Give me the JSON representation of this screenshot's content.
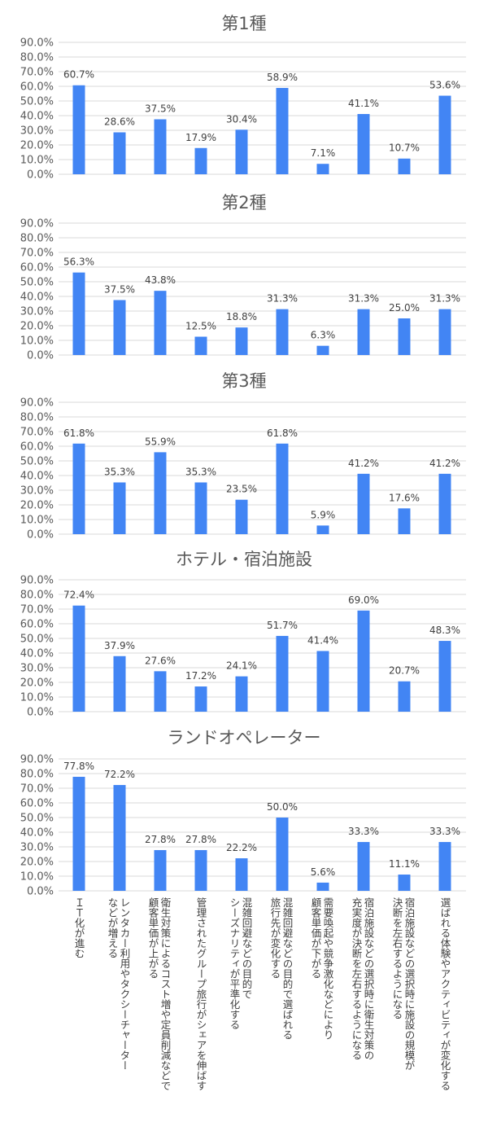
{
  "chart_data": [
    {
      "type": "bar",
      "title": "第1種",
      "ylim": [
        0,
        90
      ],
      "y_tick_labels": [
        "0.0%",
        "10.0%",
        "20.0%",
        "30.0%",
        "40.0%",
        "50.0%",
        "60.0%",
        "70.0%",
        "80.0%",
        "90.0%"
      ],
      "grid": true,
      "values": [
        60.7,
        28.6,
        37.5,
        17.9,
        30.4,
        58.9,
        7.1,
        41.1,
        10.7,
        53.6
      ],
      "data_labels": [
        "60.7%",
        "28.6%",
        "37.5%",
        "17.9%",
        "30.4%",
        "58.9%",
        "7.1%",
        "41.1%",
        "10.7%",
        "53.6%"
      ],
      "color": "#4285f4"
    },
    {
      "type": "bar",
      "title": "第2種",
      "ylim": [
        0,
        90
      ],
      "y_tick_labels": [
        "0.0%",
        "10.0%",
        "20.0%",
        "30.0%",
        "40.0%",
        "50.0%",
        "60.0%",
        "70.0%",
        "80.0%",
        "90.0%"
      ],
      "grid": true,
      "values": [
        56.3,
        37.5,
        43.8,
        12.5,
        18.8,
        31.3,
        6.3,
        31.3,
        25.0,
        31.3
      ],
      "data_labels": [
        "56.3%",
        "37.5%",
        "43.8%",
        "12.5%",
        "18.8%",
        "31.3%",
        "6.3%",
        "31.3%",
        "25.0%",
        "31.3%"
      ],
      "color": "#4285f4"
    },
    {
      "type": "bar",
      "title": "第3種",
      "ylim": [
        0,
        90
      ],
      "y_tick_labels": [
        "0.0%",
        "10.0%",
        "20.0%",
        "30.0%",
        "40.0%",
        "50.0%",
        "60.0%",
        "70.0%",
        "80.0%",
        "90.0%"
      ],
      "grid": true,
      "values": [
        61.8,
        35.3,
        55.9,
        35.3,
        23.5,
        61.8,
        5.9,
        41.2,
        17.6,
        41.2
      ],
      "data_labels": [
        "61.8%",
        "35.3%",
        "55.9%",
        "35.3%",
        "23.5%",
        "61.8%",
        "5.9%",
        "41.2%",
        "17.6%",
        "41.2%"
      ],
      "color": "#4285f4"
    },
    {
      "type": "bar",
      "title": "ホテル・宿泊施設",
      "ylim": [
        0,
        90
      ],
      "y_tick_labels": [
        "0.0%",
        "10.0%",
        "20.0%",
        "30.0%",
        "40.0%",
        "50.0%",
        "60.0%",
        "70.0%",
        "80.0%",
        "90.0%"
      ],
      "grid": true,
      "values": [
        72.4,
        37.9,
        27.6,
        17.2,
        24.1,
        51.7,
        41.4,
        69.0,
        20.7,
        48.3
      ],
      "data_labels": [
        "72.4%",
        "37.9%",
        "27.6%",
        "17.2%",
        "24.1%",
        "51.7%",
        "41.4%",
        "69.0%",
        "20.7%",
        "48.3%"
      ],
      "color": "#4285f4"
    },
    {
      "type": "bar",
      "title": "ランドオペレーター",
      "ylim": [
        0,
        90
      ],
      "y_tick_labels": [
        "0.0%",
        "10.0%",
        "20.0%",
        "30.0%",
        "40.0%",
        "50.0%",
        "60.0%",
        "70.0%",
        "80.0%",
        "90.0%"
      ],
      "grid": true,
      "values": [
        77.8,
        72.2,
        27.8,
        27.8,
        22.2,
        50.0,
        5.6,
        33.3,
        11.1,
        33.3
      ],
      "data_labels": [
        "77.8%",
        "72.2%",
        "27.8%",
        "27.8%",
        "22.2%",
        "50.0%",
        "5.6%",
        "33.3%",
        "11.1%",
        "33.3%"
      ],
      "color": "#4285f4",
      "categories": [
        [
          "ＩＴ化が進む"
        ],
        [
          "レンタカー利用やタクシーチャーター",
          "などが増える"
        ],
        [
          "衛生対策によるコスト増や定員削減などで",
          "顧客単価が上がる"
        ],
        [
          "管理されたグループ旅行がシェアを伸ばす"
        ],
        [
          "混雑回避などの目的で",
          "シーズナリティが平準化する"
        ],
        [
          "混雑回避などの目的で選ばれる",
          "旅行先が変化する"
        ],
        [
          "需要喚起や競争激化などにより",
          "顧客単価が下がる"
        ],
        [
          "宿泊施設などの選択時に衛生対策の",
          "充実度が決断を左右するようになる"
        ],
        [
          "宿泊施設などの選択時に施設の規模が",
          "決断を左右するようになる"
        ],
        [
          "選ばれる体験やアクティビティが変化する"
        ]
      ]
    }
  ]
}
